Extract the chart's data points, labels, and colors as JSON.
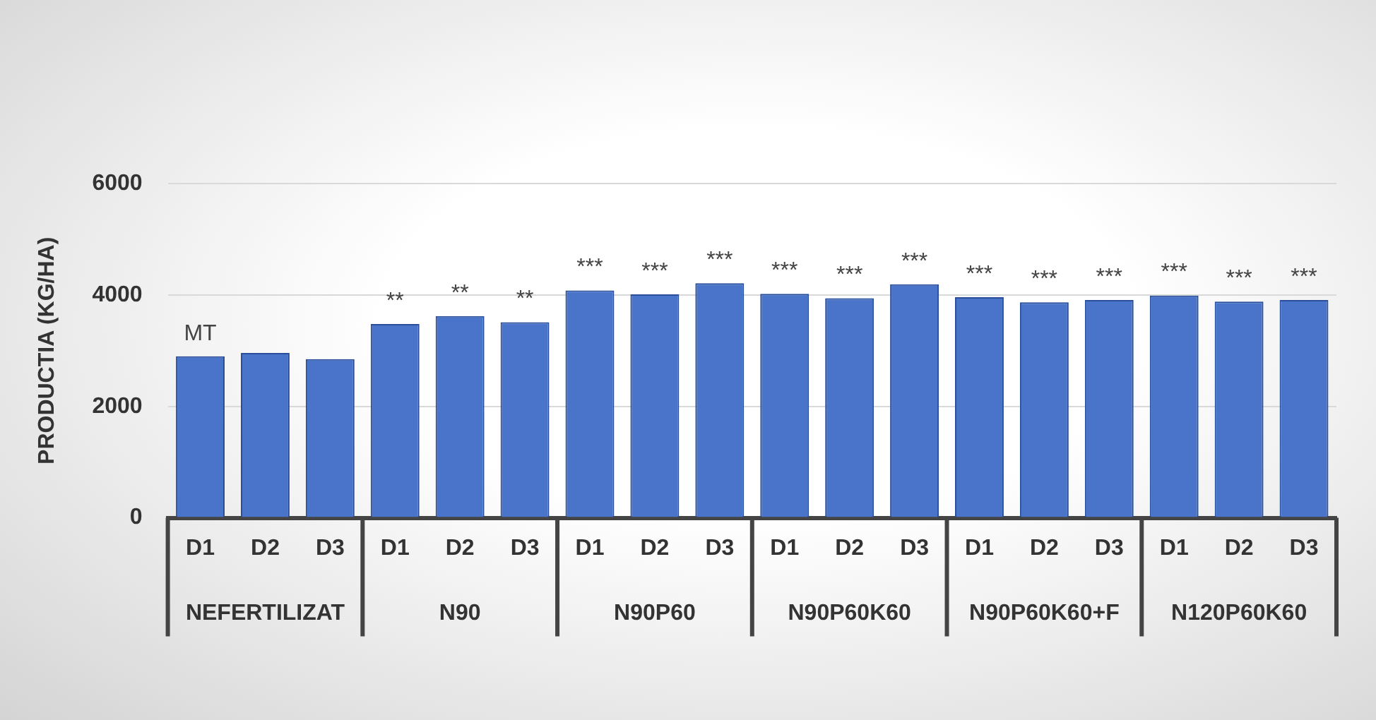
{
  "chart_data": {
    "type": "bar",
    "ylabel": "PRODUCTIA (KG/HA)",
    "categories": [
      "D1",
      "D2",
      "D3",
      "D1",
      "D2",
      "D3",
      "D1",
      "D2",
      "D3",
      "D1",
      "D2",
      "D3",
      "D1",
      "D2",
      "D3",
      "D1",
      "D2",
      "D3"
    ],
    "values": [
      2900,
      2960,
      2850,
      3480,
      3620,
      3510,
      4080,
      4010,
      4210,
      4020,
      3940,
      4190,
      3960,
      3870,
      3910,
      3990,
      3880,
      3910
    ],
    "value_labels": [
      "MT",
      null,
      null,
      "**",
      "**",
      "**",
      "***",
      "***",
      "***",
      "***",
      "***",
      "***",
      "***",
      "***",
      "***",
      "***",
      "***",
      "***"
    ],
    "color": "#4a74c9",
    "ylim": [
      0,
      6000
    ],
    "yticks": [
      0,
      2000,
      4000,
      6000
    ],
    "grid": "y",
    "legend": false,
    "annotations": [
      "NEFERTILIZAT",
      "N90",
      "N90P60",
      "N90P60K60",
      "N90P60K60+F",
      "N120P60K60"
    ]
  }
}
